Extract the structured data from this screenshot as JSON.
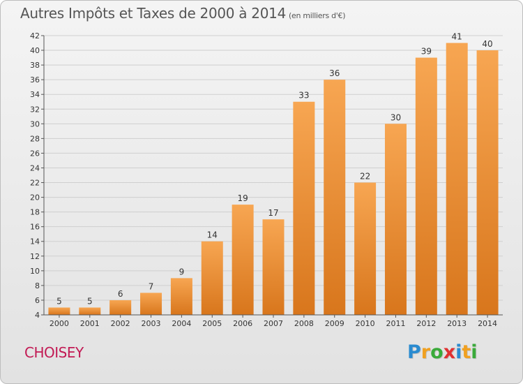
{
  "title": "Autres Impôts et Taxes de 2000 à 2014",
  "title_unit": "(en milliers d'€)",
  "place": "CHOISEY",
  "logo": {
    "letters": [
      {
        "char": "P",
        "color": "#2a8bd0"
      },
      {
        "char": "r",
        "color": "#f0a020"
      },
      {
        "char": "o",
        "color": "#3aaa3a"
      },
      {
        "char": "x",
        "color": "#e03030"
      },
      {
        "char": "i",
        "color": "#2a8bd0"
      },
      {
        "char": "t",
        "color": "#f0a020"
      },
      {
        "char": "i",
        "color": "#3aaa3a"
      }
    ]
  },
  "colors": {
    "bar_light": "#f7a652",
    "bar_dark": "#d8761c",
    "grid": "#cfcfcf",
    "axis_text": "#333333",
    "place": "#c21a54"
  },
  "chart_data": {
    "type": "bar",
    "title": "Autres Impôts et Taxes de 2000 à 2014",
    "subtitle": "(en milliers d'€)",
    "categories": [
      "2000",
      "2001",
      "2002",
      "2003",
      "2004",
      "2005",
      "2006",
      "2007",
      "2008",
      "2009",
      "2010",
      "2011",
      "2012",
      "2013",
      "2014"
    ],
    "values": [
      5,
      5,
      6,
      7,
      9,
      14,
      19,
      17,
      33,
      36,
      22,
      30,
      39,
      41,
      40
    ],
    "ylim": [
      4,
      42
    ],
    "yticks": [
      4,
      6,
      8,
      10,
      12,
      14,
      16,
      18,
      20,
      22,
      24,
      26,
      28,
      30,
      32,
      34,
      36,
      38,
      40,
      42
    ],
    "grid": true,
    "data_labels": true
  }
}
